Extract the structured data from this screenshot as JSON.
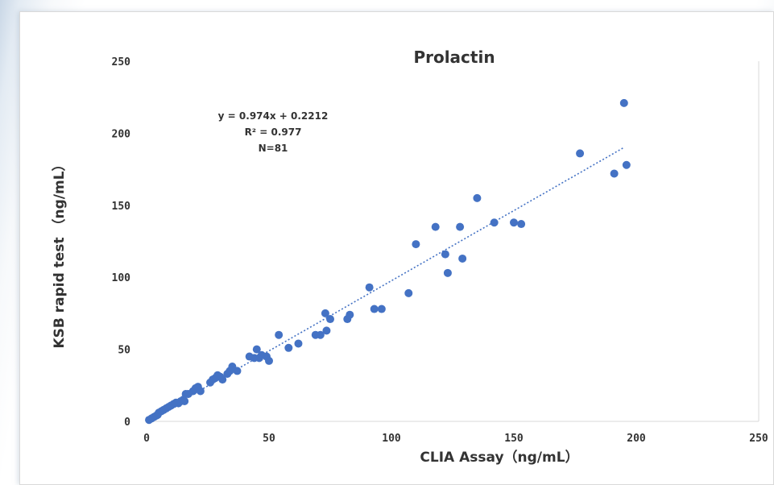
{
  "chart_data": {
    "type": "scatter",
    "title": "Prolactin",
    "xlabel": "CLIA Assay（ng/mL）",
    "ylabel": "KSB rapid test （ng/mL）",
    "xlim": [
      0,
      250
    ],
    "ylim": [
      0,
      250
    ],
    "xticks": [
      0,
      50,
      100,
      150,
      200,
      250
    ],
    "yticks": [
      0,
      50,
      100,
      150,
      200,
      250
    ],
    "grid": false,
    "annotations": [
      "y = 0.974x  + 0.2212",
      "R² = 0.977",
      "N=81"
    ],
    "trendline": {
      "slope": 0.974,
      "intercept": 0.2212,
      "x_range": [
        0,
        195
      ]
    },
    "colors": {
      "points": "#4472c4",
      "trendline": "#4472c4"
    },
    "series": [
      {
        "x": [
          1,
          2,
          3,
          4,
          4.5,
          5,
          6,
          7,
          8,
          9,
          10,
          11,
          12,
          13,
          14,
          15,
          15.5,
          16,
          17,
          19,
          20,
          21,
          22,
          26,
          27,
          28,
          29,
          30,
          31,
          33,
          34,
          35,
          37,
          42,
          44,
          45,
          46,
          47,
          49,
          50,
          54,
          58,
          62,
          69,
          71,
          73,
          73.5,
          75,
          82,
          83,
          91,
          93,
          96,
          107,
          110,
          118,
          122,
          123,
          128,
          129,
          135,
          142,
          150,
          153,
          177,
          191,
          195,
          196
        ],
        "y": [
          1,
          2,
          3,
          4,
          4.5,
          6,
          7,
          8,
          9,
          10,
          11,
          12,
          13,
          12.5,
          14,
          15,
          14,
          19,
          19,
          21,
          23,
          24,
          21,
          27,
          29,
          30,
          32,
          31,
          29,
          33,
          35,
          38,
          35,
          45,
          44,
          50,
          44,
          46,
          45,
          42,
          60,
          51,
          54,
          60,
          60,
          75,
          63,
          71,
          71,
          74,
          93,
          78,
          78,
          89,
          123,
          135,
          116,
          103,
          135,
          113,
          155,
          138,
          138,
          137,
          186,
          172,
          221,
          178
        ]
      }
    ]
  }
}
